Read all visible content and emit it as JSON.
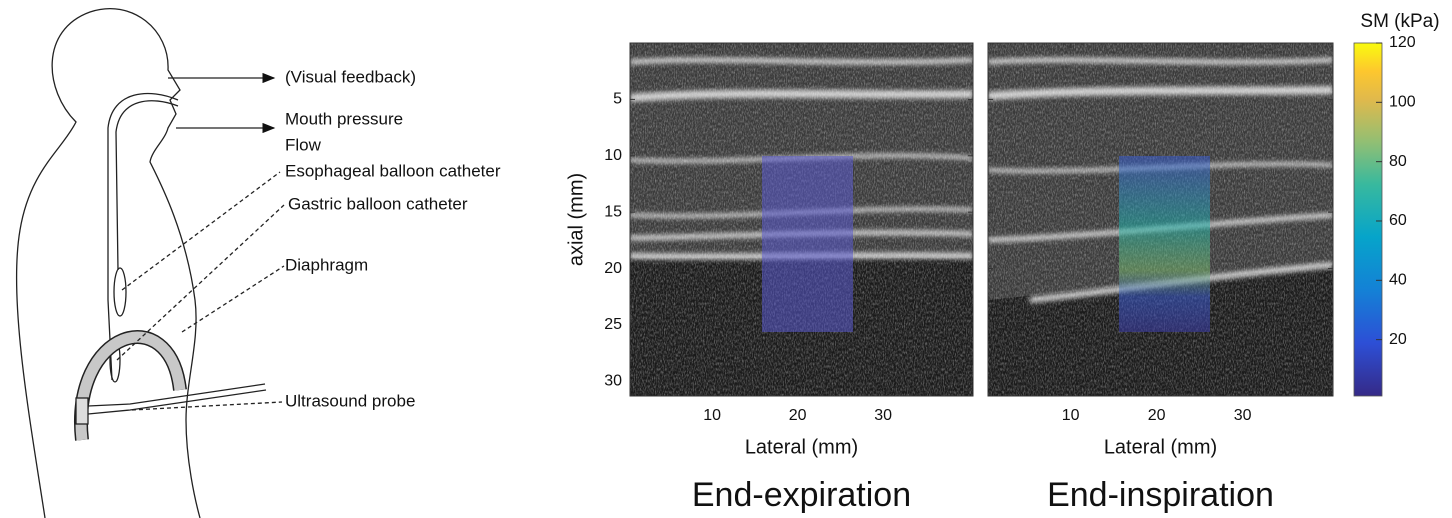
{
  "diagram": {
    "labels": [
      "(Visual feedback)",
      "Mouth pressure",
      "Flow",
      "Esophageal balloon catheter",
      "Gastric balloon catheter",
      "Diaphragm",
      "Ultrasound probe"
    ]
  },
  "ylabel": "axial (mm)",
  "ylim": [
    0,
    31.3
  ],
  "yticks": [
    5,
    10,
    15,
    20,
    25,
    30
  ],
  "panels": [
    {
      "title": "End-expiration",
      "xlabel": "Lateral (mm)",
      "xlim": [
        0.4,
        40.5
      ],
      "xticks": [
        10,
        20,
        30
      ]
    },
    {
      "title": "End-inspiration",
      "xlabel": "Lateral (mm)",
      "xlim": [
        0.4,
        40.5
      ],
      "xticks": [
        10,
        20,
        30
      ]
    }
  ],
  "colorbar": {
    "label": "SM (kPa)",
    "lim": [
      1,
      120
    ],
    "ticks": [
      20,
      40,
      60,
      80,
      100,
      120
    ]
  }
}
